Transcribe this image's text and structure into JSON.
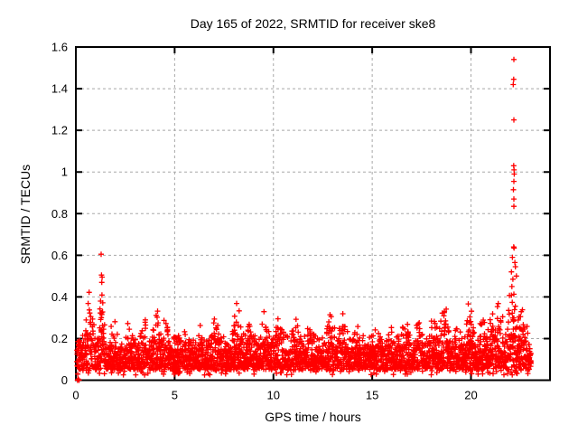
{
  "chart_data": {
    "type": "scatter",
    "title": "Day 165 of 2022, SRMTID for receiver ske8",
    "xlabel": "GPS time / hours",
    "ylabel": "SRMTID / TECUs",
    "xlim": [
      0,
      24
    ],
    "ylim": [
      0,
      1.6
    ],
    "xticks": [
      0,
      5,
      10,
      15,
      20
    ],
    "xtick_labels": [
      "0",
      "5",
      "10",
      "15",
      "20"
    ],
    "yticks": [
      0,
      0.2,
      0.4,
      0.6,
      0.8,
      1,
      1.2,
      1.4,
      1.6
    ],
    "ytick_labels": [
      "0",
      "0.2",
      "0.4",
      "0.6",
      "0.8",
      "1",
      "1.2",
      "1.4",
      "1.6"
    ],
    "grid": true,
    "legend": null,
    "marker": "plus",
    "colors": {
      "marker": "#ff0000",
      "grid": "#a8a8a8",
      "frame": "#000000",
      "background": "#ffffff",
      "text": "#000000"
    },
    "outliers": [
      [
        0.08,
        0.0
      ],
      [
        0.12,
        0.005
      ],
      [
        0.16,
        0.0
      ],
      [
        1.28,
        0.605
      ],
      [
        1.3,
        0.505
      ],
      [
        1.33,
        0.495
      ],
      [
        1.31,
        0.47
      ],
      [
        22.17,
        1.54
      ],
      [
        22.16,
        1.445
      ],
      [
        22.14,
        1.42
      ],
      [
        22.17,
        1.25
      ],
      [
        22.16,
        1.03
      ],
      [
        22.18,
        1.01
      ],
      [
        22.19,
        0.99
      ],
      [
        22.17,
        0.955
      ],
      [
        22.15,
        0.915
      ],
      [
        22.17,
        0.87
      ],
      [
        22.17,
        0.835
      ],
      [
        22.16,
        0.64
      ],
      [
        22.18,
        0.635
      ],
      [
        22.1,
        0.59
      ],
      [
        22.22,
        0.565
      ],
      [
        22.25,
        0.545
      ],
      [
        22.05,
        0.52
      ],
      [
        22.3,
        0.5
      ],
      [
        22.12,
        0.485
      ]
    ],
    "band": {
      "comment": "dense 30s-sample noise band reconstructed procedurally; env humps = [center_hour, sigma_hour, peak_TECU]",
      "seed": 7,
      "x_start": 0.03,
      "x_end": 23.05,
      "step": 0.008333,
      "base_env": 0.23,
      "floor": 0.05,
      "humps": [
        [
          0.7,
          0.22,
          0.44
        ],
        [
          1.3,
          0.18,
          0.5
        ],
        [
          1.9,
          0.25,
          0.33
        ],
        [
          2.6,
          0.28,
          0.3
        ],
        [
          3.4,
          0.3,
          0.35
        ],
        [
          4.15,
          0.28,
          0.37
        ],
        [
          4.55,
          0.2,
          0.39
        ],
        [
          5.4,
          0.35,
          0.26
        ],
        [
          6.3,
          0.3,
          0.29
        ],
        [
          7.1,
          0.35,
          0.32
        ],
        [
          8.15,
          0.25,
          0.41
        ],
        [
          8.8,
          0.25,
          0.31
        ],
        [
          9.6,
          0.3,
          0.35
        ],
        [
          10.35,
          0.3,
          0.37
        ],
        [
          11.1,
          0.35,
          0.31
        ],
        [
          11.9,
          0.35,
          0.29
        ],
        [
          12.85,
          0.3,
          0.37
        ],
        [
          13.5,
          0.35,
          0.33
        ],
        [
          14.2,
          0.35,
          0.3
        ],
        [
          15.1,
          0.4,
          0.26
        ],
        [
          16.0,
          0.35,
          0.27
        ],
        [
          16.7,
          0.3,
          0.34
        ],
        [
          17.4,
          0.35,
          0.31
        ],
        [
          18.1,
          0.35,
          0.33
        ],
        [
          18.65,
          0.3,
          0.38
        ],
        [
          19.3,
          0.3,
          0.3
        ],
        [
          19.95,
          0.28,
          0.4
        ],
        [
          20.6,
          0.3,
          0.33
        ],
        [
          21.0,
          0.25,
          0.36
        ],
        [
          21.45,
          0.25,
          0.42
        ],
        [
          22.1,
          0.25,
          0.52
        ],
        [
          22.5,
          0.18,
          0.42
        ],
        [
          22.8,
          0.18,
          0.32
        ]
      ]
    }
  }
}
